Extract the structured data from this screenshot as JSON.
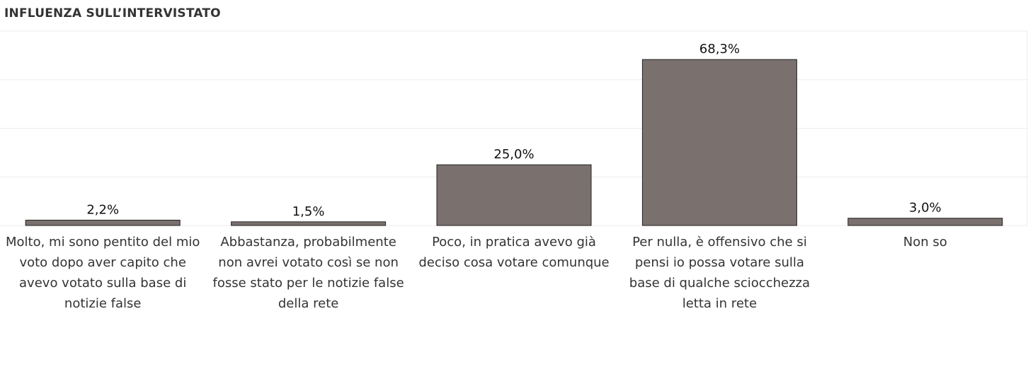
{
  "page_title": "INFLUENZA SULL’INTERVISTATO",
  "chart_data": {
    "type": "bar",
    "title": "INFLUENZA SULL’INTERVISTATO",
    "xlabel": "",
    "ylabel": "",
    "ylim": [
      0,
      80
    ],
    "grid": true,
    "legend": "none",
    "categories": [
      "Molto, mi sono pentito del mio voto dopo aver capito che avevo votato sulla base di notizie false",
      "Abbastanza, probabilmente non avrei votato così se non fosse stato per le notizie false della rete",
      "Poco, in pratica avevo già deciso cosa votare comunque",
      "Per nulla, è offensivo che si pensi io possa votare sulla base di qualche sciocchezza letta in rete",
      "Non so"
    ],
    "values": [
      2.2,
      1.5,
      25.0,
      68.3,
      3.0
    ],
    "value_labels": [
      "2,2%",
      "1,5%",
      "25,0%",
      "68,3%",
      "3,0%"
    ],
    "bar_color": "#7a716e",
    "bar_stroke": "#222222"
  }
}
